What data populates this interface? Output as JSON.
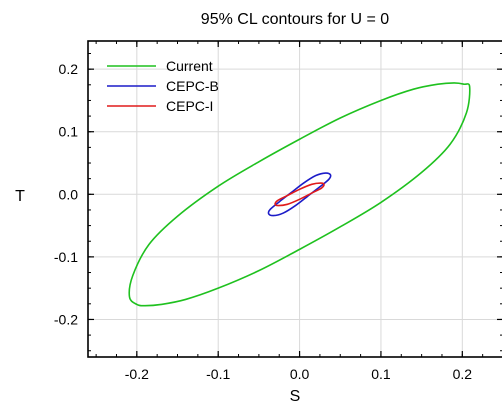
{
  "chart_data": {
    "type": "line",
    "title": "95% CL contours for U = 0",
    "xlabel": "S",
    "ylabel": "T",
    "xlim": [
      -0.26,
      0.25
    ],
    "ylim": [
      -0.26,
      0.245
    ],
    "grid": true,
    "legend": "top-left",
    "x_ticks": [
      {
        "value": -0.2,
        "label": "-0.2"
      },
      {
        "value": -0.1,
        "label": "-0.1"
      },
      {
        "value": 0.0,
        "label": "0.0"
      },
      {
        "value": 0.1,
        "label": "0.1"
      },
      {
        "value": 0.2,
        "label": "0.2"
      }
    ],
    "y_ticks": [
      {
        "value": -0.2,
        "label": "-0.2"
      },
      {
        "value": -0.1,
        "label": "-0.1"
      },
      {
        "value": 0.0,
        "label": "0.0"
      },
      {
        "value": 0.1,
        "label": "0.1"
      },
      {
        "value": 0.2,
        "label": "0.2"
      }
    ],
    "series": [
      {
        "name": "Current",
        "color": "#1fc11f",
        "points": [
          [
            0.209,
            0.172
          ],
          [
            0.202,
            0.176
          ],
          [
            0.19,
            0.178
          ],
          [
            0.17,
            0.176
          ],
          [
            0.14,
            0.168
          ],
          [
            0.1,
            0.15
          ],
          [
            0.05,
            0.122
          ],
          [
            0.0,
            0.088
          ],
          [
            -0.05,
            0.052
          ],
          [
            -0.1,
            0.013
          ],
          [
            -0.15,
            -0.035
          ],
          [
            -0.185,
            -0.08
          ],
          [
            -0.205,
            -0.13
          ],
          [
            -0.209,
            -0.164
          ],
          [
            -0.2,
            -0.176
          ],
          [
            -0.19,
            -0.178
          ],
          [
            -0.17,
            -0.176
          ],
          [
            -0.14,
            -0.168
          ],
          [
            -0.1,
            -0.15
          ],
          [
            -0.05,
            -0.122
          ],
          [
            0.0,
            -0.088
          ],
          [
            0.05,
            -0.052
          ],
          [
            0.1,
            -0.013
          ],
          [
            0.15,
            0.035
          ],
          [
            0.185,
            0.08
          ],
          [
            0.205,
            0.13
          ],
          [
            0.209,
            0.172
          ]
        ]
      },
      {
        "name": "CEPC-B",
        "color": "#1c1cc8",
        "points": [
          [
            0.038,
            0.031
          ],
          [
            0.032,
            0.034
          ],
          [
            0.02,
            0.03
          ],
          [
            0.005,
            0.018
          ],
          [
            -0.01,
            0.003
          ],
          [
            -0.025,
            -0.012
          ],
          [
            -0.036,
            -0.024
          ],
          [
            -0.038,
            -0.031
          ],
          [
            -0.032,
            -0.034
          ],
          [
            -0.02,
            -0.03
          ],
          [
            -0.005,
            -0.018
          ],
          [
            0.01,
            -0.003
          ],
          [
            0.025,
            0.012
          ],
          [
            0.036,
            0.024
          ],
          [
            0.038,
            0.031
          ]
        ]
      },
      {
        "name": "CEPC-I",
        "color": "#e01b1b",
        "points": [
          [
            0.03,
            0.016
          ],
          [
            0.026,
            0.018
          ],
          [
            0.015,
            0.016
          ],
          [
            0.0,
            0.008
          ],
          [
            -0.015,
            -0.002
          ],
          [
            -0.027,
            -0.01
          ],
          [
            -0.03,
            -0.016
          ],
          [
            -0.026,
            -0.018
          ],
          [
            -0.015,
            -0.016
          ],
          [
            0.0,
            -0.008
          ],
          [
            0.015,
            0.002
          ],
          [
            0.027,
            0.01
          ],
          [
            0.03,
            0.016
          ]
        ]
      }
    ]
  }
}
